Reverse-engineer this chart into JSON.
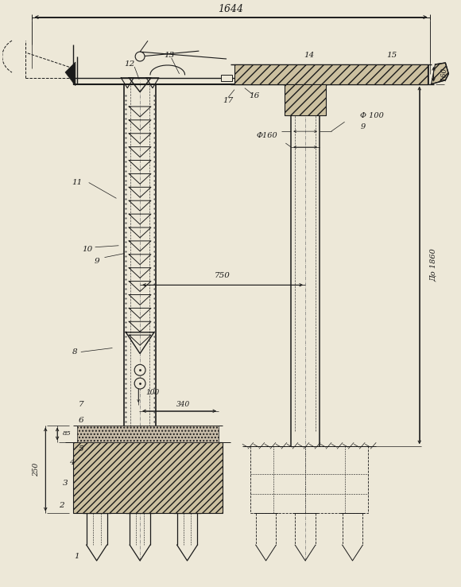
{
  "bg_color": "#ede8d8",
  "lc": "#1a1a1a",
  "figsize": [
    5.8,
    7.38
  ],
  "dpi": 100,
  "xlim": [
    0,
    580
  ],
  "ylim": [
    0,
    738
  ]
}
